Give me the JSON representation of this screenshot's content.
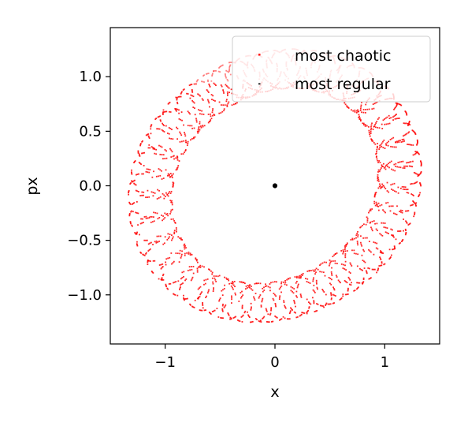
{
  "chart_data": {
    "type": "scatter",
    "title": "",
    "xlabel": "x",
    "ylabel": "px",
    "xlim": [
      -1.5,
      1.5
    ],
    "ylim": [
      -1.45,
      1.45
    ],
    "x_ticks": [
      -1,
      0,
      1
    ],
    "x_tick_labels": [
      "−1",
      "0",
      "1"
    ],
    "y_ticks": [
      1.0,
      0.5,
      0.0,
      -0.5,
      -1.0
    ],
    "y_tick_labels": [
      "1.0",
      "0.5",
      "0.0",
      "−0.5",
      "−1.0"
    ],
    "grid": false,
    "legend_position": "top-right",
    "series": [
      {
        "name": "most chaotic",
        "color": "#ff0000",
        "orbit": {
          "center": [
            0.0,
            0.0
          ],
          "base_radius": 1.08,
          "loop_radius": 0.2,
          "loops": 36,
          "points": 2200
        }
      },
      {
        "name": "most regular",
        "color": "#000000",
        "points": [
          [
            0.0,
            0.0
          ],
          [
            0.005,
            0.004
          ],
          [
            -0.004,
            0.005
          ],
          [
            0.003,
            -0.005
          ],
          [
            -0.005,
            -0.003
          ],
          [
            0.0,
            0.007
          ],
          [
            0.006,
            0.0
          ],
          [
            0.0,
            -0.006
          ],
          [
            -0.006,
            0.001
          ]
        ]
      }
    ]
  }
}
